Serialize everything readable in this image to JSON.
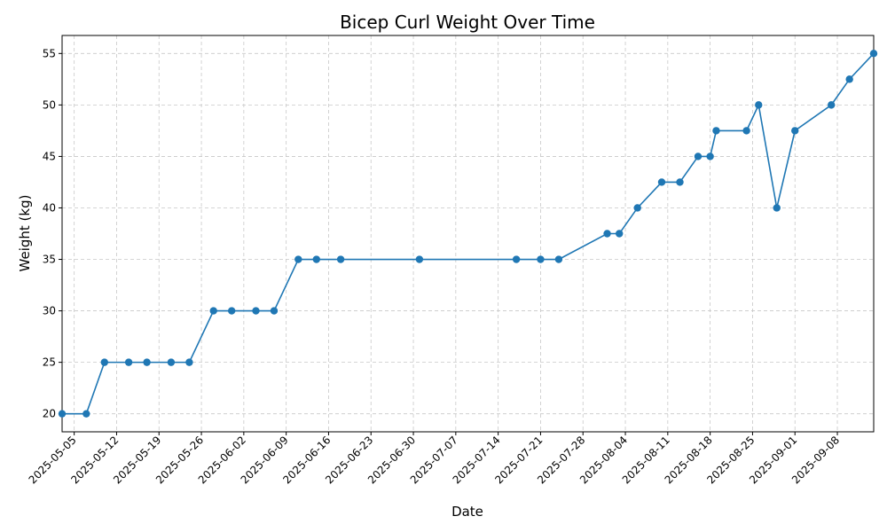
{
  "chart_data": {
    "type": "line",
    "title": "Bicep Curl Weight Over Time",
    "x_label": "Date",
    "y_label": "Weight (kg)",
    "x": [
      "2025-05-03",
      "2025-05-07",
      "2025-05-10",
      "2025-05-14",
      "2025-05-17",
      "2025-05-21",
      "2025-05-24",
      "2025-05-28",
      "2025-05-31",
      "2025-06-04",
      "2025-06-07",
      "2025-06-11",
      "2025-06-14",
      "2025-06-18",
      "2025-07-01",
      "2025-07-17",
      "2025-07-21",
      "2025-07-24",
      "2025-08-01",
      "2025-08-03",
      "2025-08-06",
      "2025-08-10",
      "2025-08-13",
      "2025-08-16",
      "2025-08-18",
      "2025-08-19",
      "2025-08-24",
      "2025-08-26",
      "2025-08-29",
      "2025-09-01",
      "2025-09-07",
      "2025-09-10",
      "2025-09-14"
    ],
    "series": [
      {
        "name": "Weight",
        "color": "#1f77b4",
        "values": [
          20,
          20,
          25,
          25,
          25,
          25,
          25,
          30,
          30,
          30,
          30,
          35,
          35,
          35,
          35,
          35,
          35,
          35,
          37.5,
          37.5,
          40,
          42.5,
          42.5,
          45,
          45,
          47.5,
          47.5,
          50,
          40,
          47.5,
          50,
          52.5,
          55
        ]
      }
    ],
    "xlim": [
      "2025-05-03",
      "2025-09-14"
    ],
    "xticks": [
      "2025-05-05",
      "2025-05-12",
      "2025-05-19",
      "2025-05-26",
      "2025-06-02",
      "2025-06-09",
      "2025-06-16",
      "2025-06-23",
      "2025-06-30",
      "2025-07-07",
      "2025-07-14",
      "2025-07-21",
      "2025-07-28",
      "2025-08-04",
      "2025-08-11",
      "2025-08-18",
      "2025-08-25",
      "2025-09-01",
      "2025-09-08"
    ],
    "ylim": [
      18.25,
      56.75
    ],
    "yticks": [
      20,
      25,
      30,
      35,
      40,
      45,
      50,
      55
    ],
    "grid": true
  }
}
